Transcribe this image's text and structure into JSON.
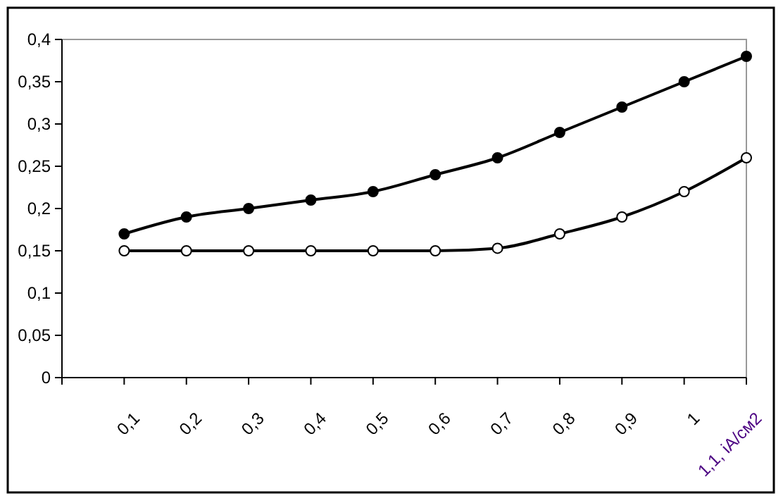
{
  "chart_data": {
    "type": "line",
    "categories": [
      null,
      "0,1",
      "0,2",
      "0,3",
      "0,4",
      "0,5",
      "0,6",
      "0,7",
      "0,8",
      "0,9",
      "1",
      "1,1, iA/см2"
    ],
    "series": [
      {
        "color": "#000000",
        "marker": "circle",
        "values": [
          null,
          0.17,
          0.19,
          0.2,
          0.21,
          0.22,
          0.24,
          0.26,
          0.29,
          0.32,
          0.35,
          0.38
        ]
      },
      {
        "color": "#000000",
        "marker": "circle-open",
        "values": [
          null,
          0.15,
          0.15,
          0.15,
          0.15,
          0.15,
          0.15,
          0.153,
          0.17,
          0.19,
          0.22,
          0.26
        ]
      }
    ],
    "ylim": [
      0,
      0.4
    ],
    "yticks": [
      {
        "value": 0,
        "label": "0"
      },
      {
        "value": 0.05,
        "label": "0,05"
      },
      {
        "value": 0.1,
        "label": "0,1"
      },
      {
        "value": 0.15,
        "label": "0,15"
      },
      {
        "value": 0.2,
        "label": "0,2"
      },
      {
        "value": 0.25,
        "label": "0,25"
      },
      {
        "value": 0.3,
        "label": "0,3"
      },
      {
        "value": 0.35,
        "label": "0,35"
      },
      {
        "value": 0.4,
        "label": "0,4"
      }
    ],
    "grid": false,
    "line_style": "solid"
  }
}
